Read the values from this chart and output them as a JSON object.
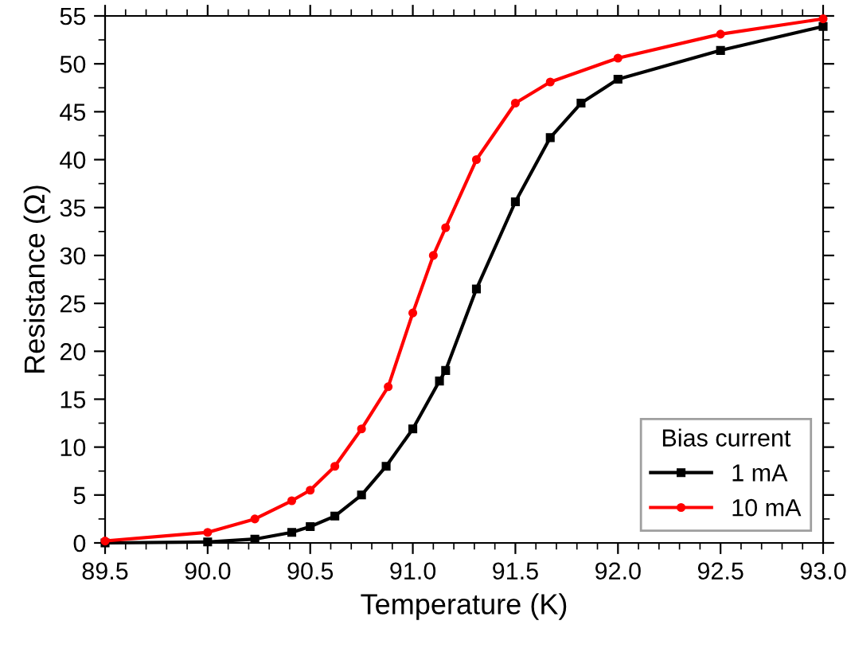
{
  "chart_data": {
    "type": "line",
    "xlabel": "Temperature (K)",
    "ylabel": "Resistance (Ω)",
    "legend_title": "Bias current",
    "legend": "bottom right",
    "grid": false,
    "xlim": [
      89.5,
      93.0
    ],
    "ylim": [
      0,
      55
    ],
    "xticks": [
      89.5,
      {
        "value": 90,
        "label": "90.0"
      },
      90.5,
      {
        "value": 91,
        "label": "91.0"
      },
      91.5,
      {
        "value": 92,
        "label": "92.0"
      },
      92.5,
      {
        "value": 93,
        "label": "93.0"
      }
    ],
    "yticks": [
      0,
      5,
      10,
      15,
      20,
      25,
      30,
      35,
      40,
      45,
      50,
      55
    ],
    "series": [
      {
        "name": "1 mA",
        "color": "#000000",
        "marker": "square",
        "x": [
          89.5,
          90.0,
          90.23,
          90.41,
          90.5,
          90.62,
          90.75,
          90.87,
          91.0,
          91.13,
          91.16,
          91.31,
          91.5,
          91.67,
          91.82,
          92.0,
          92.5,
          93.0
        ],
        "values": [
          0,
          0.1,
          0.4,
          1.1,
          1.7,
          2.8,
          5,
          8,
          11.9,
          16.9,
          18,
          26.5,
          35.6,
          42.3,
          45.9,
          48.4,
          51.4,
          53.9
        ]
      },
      {
        "name": "10 mA",
        "color": "#ff0000",
        "marker": "circle",
        "x": [
          89.5,
          90.0,
          90.23,
          90.41,
          90.5,
          90.62,
          90.75,
          90.88,
          91.0,
          91.1,
          91.16,
          91.31,
          91.5,
          91.67,
          92.0,
          92.5,
          93.0
        ],
        "values": [
          0.2,
          1.1,
          2.5,
          4.4,
          5.5,
          8,
          11.9,
          16.3,
          24,
          30,
          32.9,
          40,
          45.9,
          48.1,
          50.6,
          53.1,
          54.7
        ]
      }
    ]
  }
}
